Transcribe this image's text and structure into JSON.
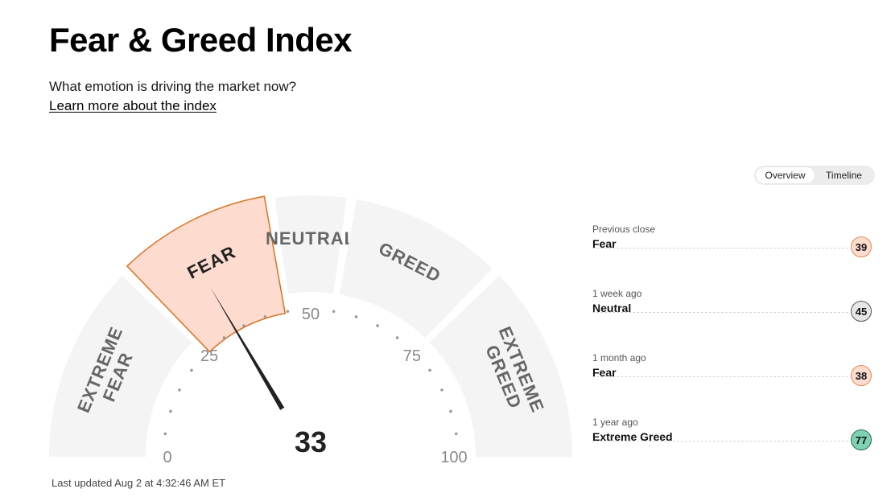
{
  "header": {
    "title": "Fear & Greed Index",
    "subtitle": "What emotion is driving the market now?",
    "learn_more": "Learn more about the index"
  },
  "view_toggle": {
    "options": [
      "Overview",
      "Timeline"
    ],
    "selected": "Overview"
  },
  "gauge": {
    "score": 33,
    "score_label": "33",
    "min": 0,
    "max": 100,
    "scale_labels": [
      "0",
      "25",
      "50",
      "75",
      "100"
    ],
    "active_segment": "FEAR",
    "segments": [
      {
        "label_lines": [
          "EXTREME",
          "FEAR"
        ],
        "from": 0,
        "to": 25
      },
      {
        "label_lines": [
          "FEAR"
        ],
        "from": 25,
        "to": 45
      },
      {
        "label_lines": [
          "NEUTRAL"
        ],
        "from": 45,
        "to": 55
      },
      {
        "label_lines": [
          "GREED"
        ],
        "from": 55,
        "to": 75
      },
      {
        "label_lines": [
          "EXTREME",
          "GREED"
        ],
        "from": 75,
        "to": 100
      }
    ],
    "colors": {
      "track": "#f4f4f4",
      "active_fill": "#fddccf",
      "active_stroke": "#d9711f",
      "needle": "#222222"
    }
  },
  "last_updated": "Last updated Aug 2 at 4:32:46 AM ET",
  "history": [
    {
      "when": "Previous close",
      "rating": "Fear",
      "value": "39",
      "badge_bg": "#fddccf",
      "badge_border": "#e08a55"
    },
    {
      "when": "1 week ago",
      "rating": "Neutral",
      "value": "45",
      "badge_bg": "#e6e6e6",
      "badge_border": "#555555"
    },
    {
      "when": "1 month ago",
      "rating": "Fear",
      "value": "38",
      "badge_bg": "#fddccf",
      "badge_border": "#e08a55"
    },
    {
      "when": "1 year ago",
      "rating": "Extreme Greed",
      "value": "77",
      "badge_bg": "#7fd1b1",
      "badge_border": "#2a6b55"
    }
  ]
}
